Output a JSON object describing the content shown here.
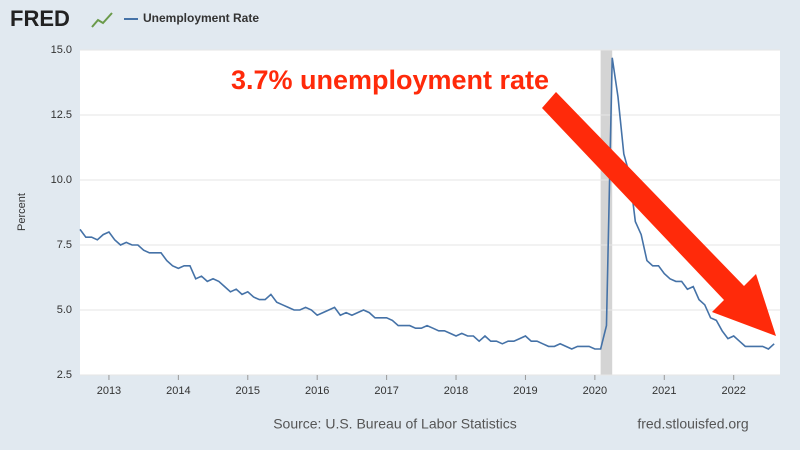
{
  "logo": "FRED",
  "chart_data": {
    "type": "line",
    "series": [
      {
        "name": "Unemployment Rate",
        "color": "#4572a7",
        "x": [
          2012.583,
          2012.667,
          2012.75,
          2012.833,
          2012.917,
          2013,
          2013.083,
          2013.167,
          2013.25,
          2013.333,
          2013.417,
          2013.5,
          2013.583,
          2013.667,
          2013.75,
          2013.833,
          2013.917,
          2014,
          2014.083,
          2014.167,
          2014.25,
          2014.333,
          2014.417,
          2014.5,
          2014.583,
          2014.667,
          2014.75,
          2014.833,
          2014.917,
          2015,
          2015.083,
          2015.167,
          2015.25,
          2015.333,
          2015.417,
          2015.5,
          2015.583,
          2015.667,
          2015.75,
          2015.833,
          2015.917,
          2016,
          2016.083,
          2016.167,
          2016.25,
          2016.333,
          2016.417,
          2016.5,
          2016.583,
          2016.667,
          2016.75,
          2016.833,
          2016.917,
          2017,
          2017.083,
          2017.167,
          2017.25,
          2017.333,
          2017.417,
          2017.5,
          2017.583,
          2017.667,
          2017.75,
          2017.833,
          2017.917,
          2018,
          2018.083,
          2018.167,
          2018.25,
          2018.333,
          2018.417,
          2018.5,
          2018.583,
          2018.667,
          2018.75,
          2018.833,
          2018.917,
          2019,
          2019.083,
          2019.167,
          2019.25,
          2019.333,
          2019.417,
          2019.5,
          2019.583,
          2019.667,
          2019.75,
          2019.833,
          2019.917,
          2020,
          2020.083,
          2020.167,
          2020.25,
          2020.333,
          2020.417,
          2020.5,
          2020.583,
          2020.667,
          2020.75,
          2020.833,
          2020.917,
          2021,
          2021.083,
          2021.167,
          2021.25,
          2021.333,
          2021.417,
          2021.5,
          2021.583,
          2021.667,
          2021.75,
          2021.833,
          2021.917,
          2022,
          2022.083,
          2022.167,
          2022.25,
          2022.333,
          2022.417,
          2022.5,
          2022.583
        ],
        "values": [
          8.1,
          7.8,
          7.8,
          7.7,
          7.9,
          8.0,
          7.7,
          7.5,
          7.6,
          7.5,
          7.5,
          7.3,
          7.2,
          7.2,
          7.2,
          6.9,
          6.7,
          6.6,
          6.7,
          6.7,
          6.2,
          6.3,
          6.1,
          6.2,
          6.1,
          5.9,
          5.7,
          5.8,
          5.6,
          5.7,
          5.5,
          5.4,
          5.4,
          5.6,
          5.3,
          5.2,
          5.1,
          5.0,
          5.0,
          5.1,
          5.0,
          4.8,
          4.9,
          5.0,
          5.1,
          4.8,
          4.9,
          4.8,
          4.9,
          5.0,
          4.9,
          4.7,
          4.7,
          4.7,
          4.6,
          4.4,
          4.4,
          4.4,
          4.3,
          4.3,
          4.4,
          4.3,
          4.2,
          4.2,
          4.1,
          4.0,
          4.1,
          4.0,
          4.0,
          3.8,
          4.0,
          3.8,
          3.8,
          3.7,
          3.8,
          3.8,
          3.9,
          4.0,
          3.8,
          3.8,
          3.7,
          3.6,
          3.6,
          3.7,
          3.6,
          3.5,
          3.6,
          3.6,
          3.6,
          3.5,
          3.5,
          4.4,
          14.7,
          13.2,
          11.0,
          10.2,
          8.4,
          7.9,
          6.9,
          6.7,
          6.7,
          6.4,
          6.2,
          6.1,
          6.1,
          5.8,
          5.9,
          5.4,
          5.2,
          4.7,
          4.6,
          4.2,
          3.9,
          4.0,
          3.8,
          3.6,
          3.6,
          3.6,
          3.6,
          3.5,
          3.7
        ]
      }
    ],
    "ylabel": "Percent",
    "xlim": [
      2012.583,
      2022.667
    ],
    "xticks": [
      2013,
      2014,
      2015,
      2016,
      2017,
      2018,
      2019,
      2020,
      2021,
      2022
    ],
    "ylim": [
      2.5,
      15
    ],
    "yticks": [
      2.5,
      {
        "value": 5,
        "label": "5.0"
      },
      7.5,
      {
        "value": 10,
        "label": "10.0"
      },
      12.5,
      {
        "value": 15,
        "label": "15.0"
      }
    ],
    "recessions": [
      [
        2020.083,
        2020.25
      ]
    ],
    "grid": true,
    "annotation": "3.7% unemployment rate",
    "source": "Source: U.S. Bureau of Labor Statistics",
    "site": "fred.stlouisfed.org"
  }
}
